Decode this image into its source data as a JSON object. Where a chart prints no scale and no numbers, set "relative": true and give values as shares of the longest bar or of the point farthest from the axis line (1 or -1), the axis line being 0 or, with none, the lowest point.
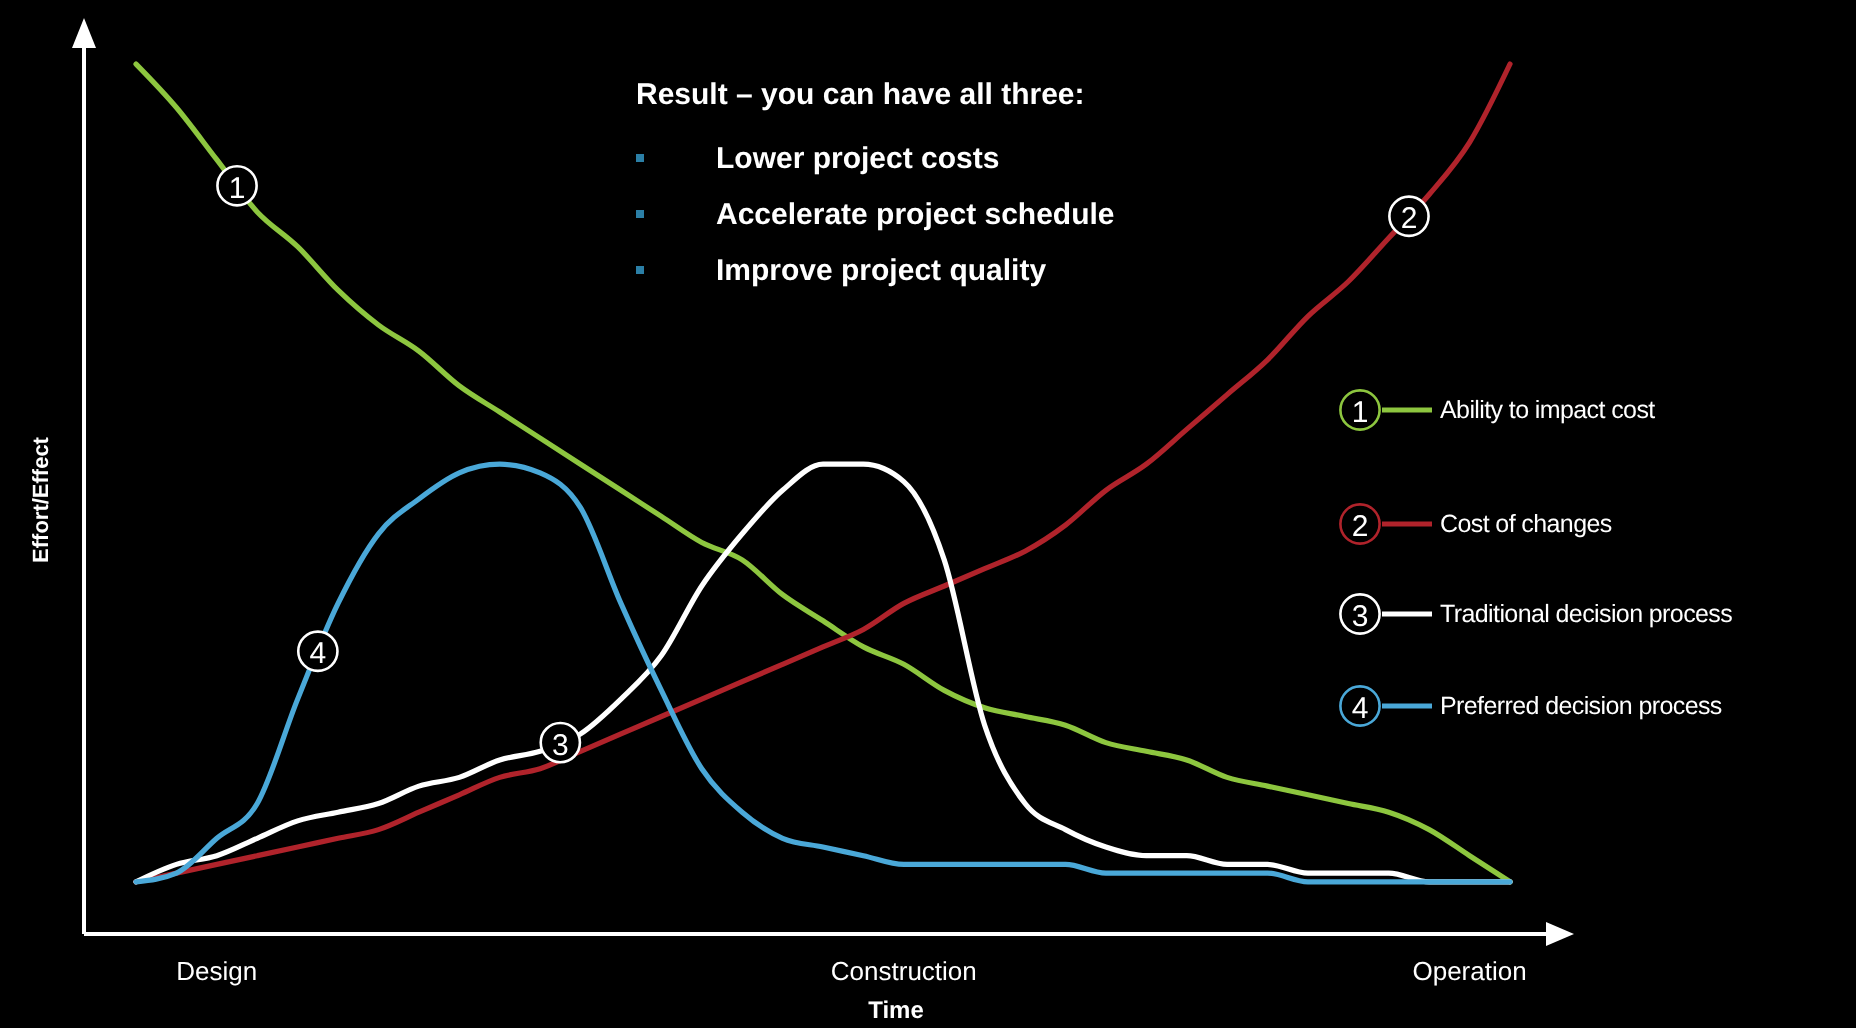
{
  "chart_data": {
    "type": "line",
    "relative": true,
    "title": "Result – you can have all three:",
    "xlabel": "Time",
    "ylabel": "Effort/Effect",
    "categories": [
      null,
      null,
      "Design",
      null,
      null,
      null,
      null,
      null,
      null,
      null,
      null,
      null,
      null,
      null,
      null,
      null,
      null,
      null,
      null,
      "Construction",
      null,
      null,
      null,
      null,
      null,
      null,
      null,
      null,
      null,
      null,
      null,
      null,
      null,
      "Operation",
      null
    ],
    "legend": "right",
    "grid": false,
    "marker": "none",
    "line_style": "solid",
    "series": [
      {
        "name": "Ability to impact cost",
        "color": "#8dc63f",
        "values": [
          1,
          0.95,
          0.89,
          0.83,
          0.79,
          0.74,
          0.7,
          0.67,
          0.63,
          0.6,
          0.57,
          0.54,
          0.51,
          0.48,
          0.45,
          0.43,
          0.39,
          0.36,
          0.33,
          0.31,
          0.28,
          0.26,
          0.25,
          0.24,
          0.22,
          0.21,
          0.2,
          0.18,
          0.17,
          0.16,
          0.15,
          0.14,
          0.12,
          0.09,
          0.06
        ]
      },
      {
        "name": "Cost of changes",
        "color": "#b0232b",
        "values": [
          0.06,
          0.07,
          0.08,
          0.09,
          0.1,
          0.11,
          0.12,
          0.14,
          0.16,
          0.18,
          0.19,
          0.21,
          0.23,
          0.25,
          0.27,
          0.29,
          0.31,
          0.33,
          0.35,
          0.38,
          0.4,
          0.42,
          0.44,
          0.47,
          0.51,
          0.54,
          0.58,
          0.62,
          0.66,
          0.71,
          0.75,
          0.8,
          0.85,
          0.91,
          1
        ]
      },
      {
        "name": "Traditional decision process",
        "color": "#ffffff",
        "values": [
          0.06,
          0.08,
          0.09,
          0.11,
          0.13,
          0.14,
          0.15,
          0.17,
          0.18,
          0.2,
          0.21,
          0.23,
          0.27,
          0.32,
          0.4,
          0.46,
          0.51,
          0.54,
          0.54,
          0.52,
          0.43,
          0.24,
          0.15,
          0.12,
          0.1,
          0.09,
          0.09,
          0.08,
          0.08,
          0.07,
          0.07,
          0.07,
          0.06,
          0.06,
          0.06
        ]
      },
      {
        "name": "Preferred decision process",
        "color": "#4aa8d8",
        "values": [
          0.06,
          0.07,
          0.11,
          0.15,
          0.27,
          0.38,
          0.46,
          0.5,
          0.53,
          0.54,
          0.53,
          0.49,
          0.38,
          0.28,
          0.19,
          0.14,
          0.11,
          0.1,
          0.09,
          0.08,
          0.08,
          0.08,
          0.08,
          0.08,
          0.07,
          0.07,
          0.07,
          0.07,
          0.07,
          0.06,
          0.06,
          0.06,
          0.06,
          0.06,
          0.06
        ]
      }
    ],
    "annotations": [
      "1",
      "2",
      "3",
      "4",
      "Lower project costs",
      "Accelerate project schedule",
      "Improve project quality"
    ]
  }
}
